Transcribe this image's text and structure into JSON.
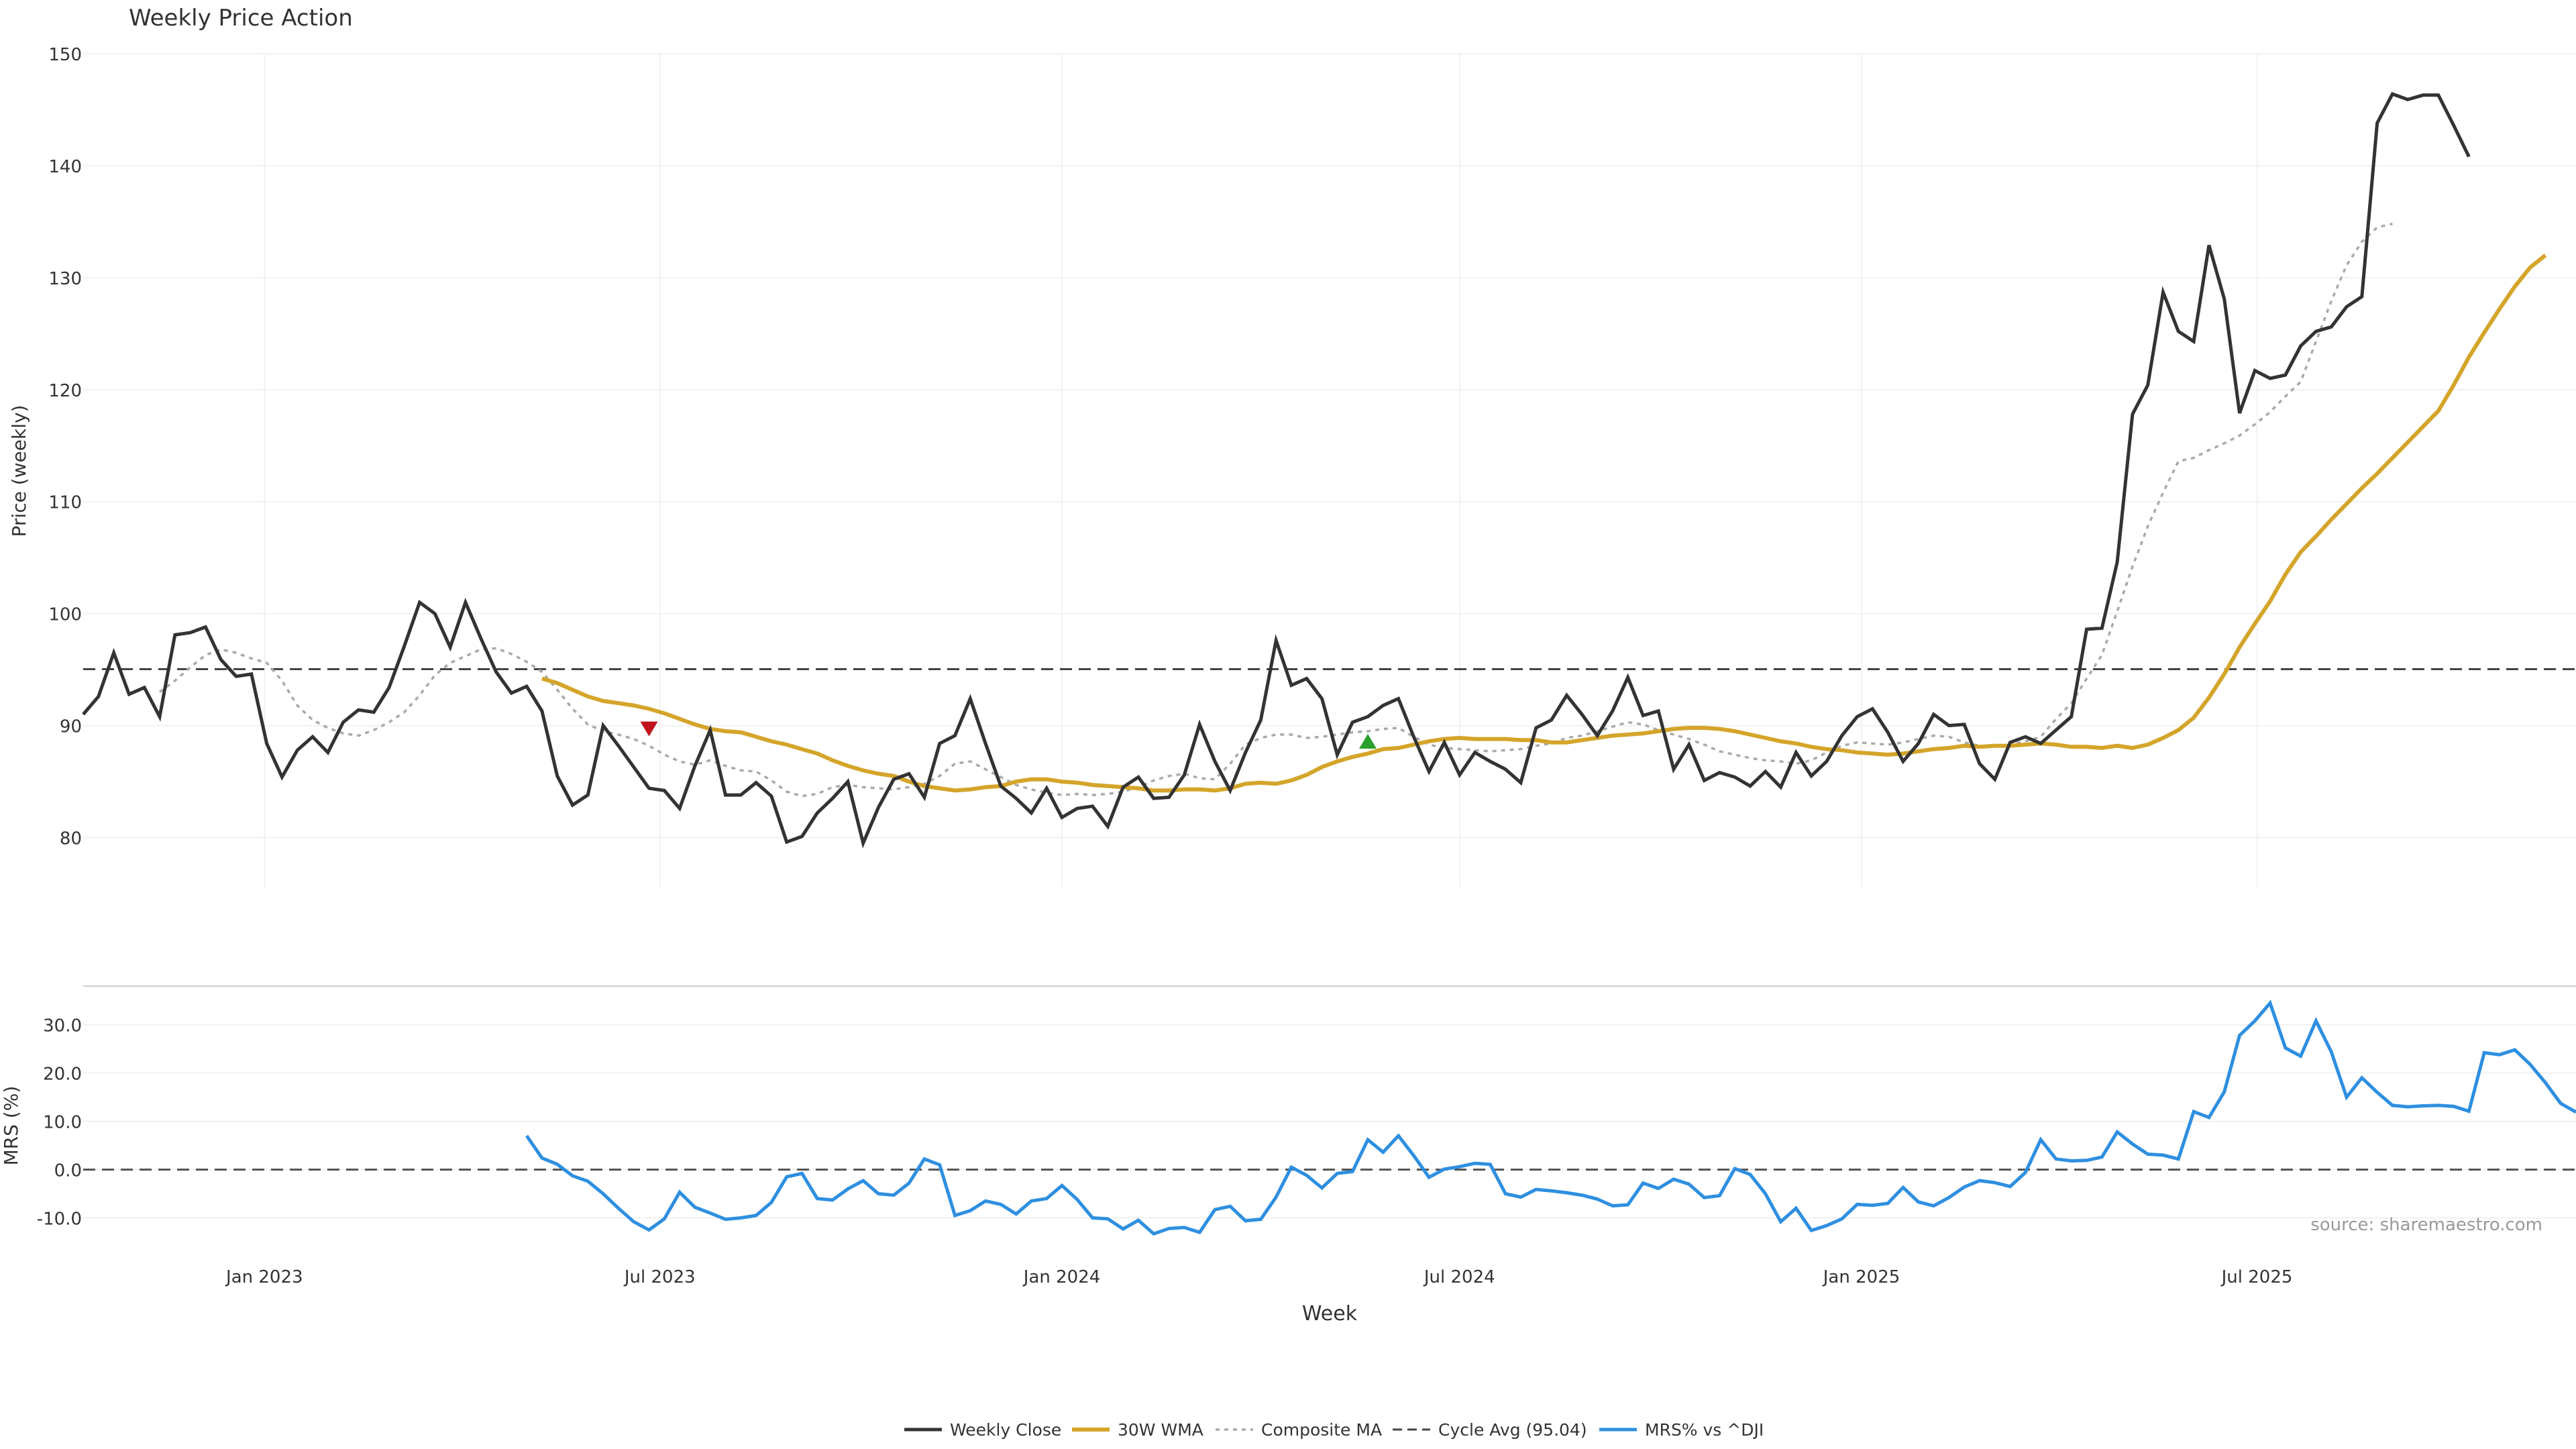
{
  "chart_data": {
    "type": "line",
    "title": "Weekly Price Action",
    "price_panel": {
      "ylabel": "Price (weekly)",
      "ylim": [
        75.6,
        150
      ],
      "yticks": [
        80,
        90,
        100,
        110,
        120,
        130,
        140,
        150
      ],
      "cycle_avg": 95.04,
      "series": {
        "close": [
          91.0,
          92.6,
          96.5,
          92.8,
          93.4,
          90.8,
          98.1,
          98.3,
          98.8,
          95.9,
          94.4,
          94.6,
          88.4,
          85.4,
          87.8,
          89.0,
          87.6,
          90.3,
          91.4,
          91.2,
          93.4,
          97.1,
          101.0,
          100.0,
          97.0,
          101.0,
          97.8,
          94.8,
          92.9,
          93.5,
          91.3,
          85.5,
          82.9,
          83.8,
          90.0,
          88.2,
          86.3,
          84.4,
          84.2,
          82.6,
          86.4,
          89.6,
          83.8,
          83.8,
          84.9,
          83.7,
          79.6,
          80.1,
          82.2,
          83.5,
          85.0,
          79.5,
          82.7,
          85.2,
          85.7,
          83.6,
          88.4,
          89.1,
          92.4,
          88.4,
          84.6,
          83.5,
          82.2,
          84.4,
          81.8,
          82.6,
          82.8,
          81.0,
          84.5,
          85.4,
          83.5,
          83.6,
          85.6,
          90.1,
          86.8,
          84.2,
          87.6,
          90.5,
          97.6,
          93.6,
          94.2,
          92.4,
          87.4,
          90.3,
          90.8,
          91.8,
          92.4,
          89.0,
          85.9,
          88.5,
          85.6,
          87.6,
          86.8,
          86.1,
          84.9,
          89.8,
          90.5,
          92.7,
          91.0,
          89.1,
          91.3,
          94.3,
          90.9,
          91.3,
          86.1,
          88.3,
          85.1,
          85.8,
          85.4,
          84.6,
          85.9,
          84.5,
          87.6,
          85.5,
          86.8,
          89.1,
          90.8,
          91.5,
          89.4,
          86.8,
          88.4,
          91.0,
          90.0,
          90.1,
          86.6,
          85.2,
          88.5,
          89.0,
          88.4,
          89.6,
          90.8,
          98.6,
          98.7,
          104.6,
          117.8,
          120.4,
          128.7,
          125.2,
          124.3,
          132.9,
          128.1,
          117.9,
          121.7,
          121.0,
          121.3,
          123.9,
          125.2,
          125.6,
          127.4,
          128.3,
          143.8,
          146.4,
          145.9,
          146.3,
          146.3,
          143.6,
          140.8
        ],
        "wma30": [
          94.2,
          93.8,
          93.2,
          92.6,
          92.2,
          92.0,
          91.8,
          91.5,
          91.1,
          90.6,
          90.1,
          89.7,
          89.5,
          89.4,
          89.0,
          88.6,
          88.3,
          87.9,
          87.5,
          86.9,
          86.4,
          86.0,
          85.7,
          85.5,
          85.0,
          84.6,
          84.4,
          84.2,
          84.3,
          84.5,
          84.6,
          85.0,
          85.2,
          85.2,
          85.0,
          84.9,
          84.7,
          84.6,
          84.5,
          84.4,
          84.2,
          84.2,
          84.3,
          84.3,
          84.2,
          84.4,
          84.8,
          84.9,
          84.8,
          85.1,
          85.6,
          86.3,
          86.8,
          87.2,
          87.5,
          87.9,
          88.0,
          88.3,
          88.6,
          88.8,
          88.9,
          88.8,
          88.8,
          88.8,
          88.7,
          88.7,
          88.5,
          88.5,
          88.7,
          88.9,
          89.1,
          89.2,
          89.3,
          89.5,
          89.7,
          89.8,
          89.8,
          89.7,
          89.5,
          89.2,
          88.9,
          88.6,
          88.4,
          88.1,
          87.9,
          87.8,
          87.6,
          87.5,
          87.4,
          87.5,
          87.7,
          87.9,
          88.0,
          88.2,
          88.1,
          88.2,
          88.2,
          88.3,
          88.4,
          88.3,
          88.1,
          88.1,
          88.0,
          88.2,
          88.0,
          88.3,
          88.9,
          89.6,
          90.7,
          92.5,
          94.6,
          97.0,
          99.1,
          101.1,
          103.5,
          105.5,
          106.9,
          108.4,
          109.8,
          111.2,
          112.5,
          113.9,
          115.3,
          116.7,
          118.1,
          120.4,
          122.9,
          125.1,
          127.2,
          129.2,
          130.9,
          132.0
        ],
        "composite_ma": [
          null,
          null,
          null,
          null,
          null,
          93.0,
          94.0,
          95.2,
          96.3,
          96.8,
          96.5,
          96.0,
          95.6,
          94.0,
          91.8,
          90.5,
          89.8,
          89.3,
          89.1,
          89.6,
          90.3,
          91.2,
          92.7,
          94.5,
          95.6,
          96.2,
          96.8,
          96.9,
          96.4,
          95.7,
          94.8,
          93.2,
          91.5,
          90.1,
          89.5,
          89.2,
          88.8,
          88.2,
          87.4,
          86.8,
          86.5,
          86.9,
          86.4,
          86.0,
          85.9,
          85.1,
          84.1,
          83.7,
          83.9,
          84.5,
          84.7,
          84.5,
          84.4,
          84.3,
          84.5,
          84.8,
          85.5,
          86.6,
          86.8,
          86.1,
          85.4,
          84.7,
          84.3,
          84.0,
          83.8,
          83.9,
          83.8,
          83.9,
          84.1,
          84.5,
          85.1,
          85.5,
          85.7,
          85.3,
          85.2,
          86.6,
          88.3,
          88.9,
          89.2,
          89.2,
          88.9,
          89.0,
          89.2,
          89.4,
          89.5,
          89.7,
          89.8,
          89.0,
          88.3,
          88.0,
          87.9,
          87.8,
          87.7,
          87.8,
          87.9,
          88.2,
          88.4,
          88.9,
          89.1,
          89.5,
          89.9,
          90.3,
          90.1,
          89.6,
          89.2,
          88.8,
          88.3,
          87.7,
          87.4,
          87.1,
          86.9,
          86.8,
          86.6,
          86.9,
          87.6,
          88.2,
          88.5,
          88.4,
          88.3,
          88.5,
          88.8,
          89.1,
          89.0,
          88.5,
          88.2,
          88.1,
          88.3,
          88.6,
          89.0,
          90.6,
          92.0,
          94.2,
          96.3,
          100.2,
          104.2,
          107.8,
          110.8,
          113.6,
          113.9,
          114.6,
          115.2,
          115.9,
          116.9,
          118.0,
          119.4,
          120.7,
          124.3,
          127.9,
          131.1,
          133.2,
          134.5,
          134.8
        ]
      },
      "signals": [
        {
          "type": "sell",
          "date": "2023-06-26",
          "value": 89.7
        },
        {
          "type": "buy",
          "date": "2024-05-20",
          "value": 88.6
        }
      ]
    },
    "mrs_panel": {
      "ylabel": "MRS (%)",
      "ylim": [
        -14.8,
        38
      ],
      "yticks": [
        -10.0,
        0.0,
        10.0,
        20.0,
        30.0
      ],
      "ytick_labels": [
        "-10.0",
        "0.0",
        "10.0",
        "20.0",
        "30.0"
      ],
      "zero_line": 0,
      "values": [
        7.0,
        2.4,
        1.1,
        -1.3,
        -2.4,
        -5.0,
        -8.0,
        -10.8,
        -12.5,
        -10.2,
        -4.7,
        -7.8,
        -9.0,
        -10.3,
        -10.0,
        -9.5,
        -6.8,
        -1.5,
        -0.8,
        -6.0,
        -6.3,
        -4.0,
        -2.3,
        -5.0,
        -5.3,
        -2.8,
        2.2,
        1.0,
        -9.5,
        -8.5,
        -6.5,
        -7.2,
        -9.2,
        -6.5,
        -6.0,
        -3.3,
        -6.2,
        -10.0,
        -10.2,
        -12.3,
        -10.5,
        -13.3,
        -12.2,
        -12.0,
        -13.0,
        -8.3,
        -7.6,
        -10.6,
        -10.3,
        -5.7,
        0.5,
        -1.2,
        -3.8,
        -0.8,
        -0.4,
        6.2,
        3.6,
        7.0,
        2.9,
        -1.6,
        0.1,
        0.6,
        1.3,
        1.1,
        -5.0,
        -5.7,
        -4.1,
        -4.4,
        -4.8,
        -5.3,
        -6.1,
        -7.5,
        -7.3,
        -2.8,
        -3.9,
        -2.0,
        -3.0,
        -5.8,
        -5.4,
        0.2,
        -1.0,
        -5.0,
        -10.8,
        -8.0,
        -12.6,
        -11.6,
        -10.2,
        -7.2,
        -7.4,
        -7.0,
        -3.7,
        -6.7,
        -7.5,
        -5.8,
        -3.6,
        -2.3,
        -2.7,
        -3.5,
        -0.6,
        6.2,
        2.2,
        1.8,
        1.9,
        2.6,
        7.8,
        5.3,
        3.2,
        3.0,
        2.2,
        12.0,
        10.8,
        16.1,
        27.8,
        30.8,
        34.5,
        25.2,
        23.5,
        30.8,
        24.4,
        15.0,
        19.0,
        16.0,
        13.3,
        13.0,
        13.2,
        13.3,
        13.1,
        12.1,
        24.2,
        23.8,
        24.8,
        21.8,
        18.0,
        13.7,
        11.9
      ]
    },
    "x": {
      "start_date": "2022-10-10",
      "end_date": "2025-11-24",
      "price_series_start": "2023-05-08",
      "mrs_series_start": "2023-05-01",
      "xlabel": "Week",
      "ticks": [
        "2023-01-01",
        "2023-07-01",
        "2024-01-01",
        "2024-07-01",
        "2025-01-01",
        "2025-07-01"
      ],
      "tick_labels": [
        "Jan 2023",
        "Jul 2023",
        "Jan 2024",
        "Jul 2024",
        "Jan 2025",
        "Jul 2025"
      ]
    },
    "legend": {
      "position": "bottom-center",
      "entries": [
        "Weekly Close",
        "30W WMA",
        "Composite MA",
        "Cycle Avg (95.04)",
        "MRS% vs ^DJI"
      ]
    },
    "source_note": "source: sharemaestro.com",
    "colors": {
      "close": "#333333",
      "wma30": "#d4a52a",
      "composite_ma": "#aaaaaa",
      "cycle_avg": "#444444",
      "mrs": "#2e8fe0",
      "sell": "#c0141c",
      "buy": "#2ca02c",
      "grid": "#eeeeee",
      "text": "#333333"
    },
    "grid": true
  }
}
